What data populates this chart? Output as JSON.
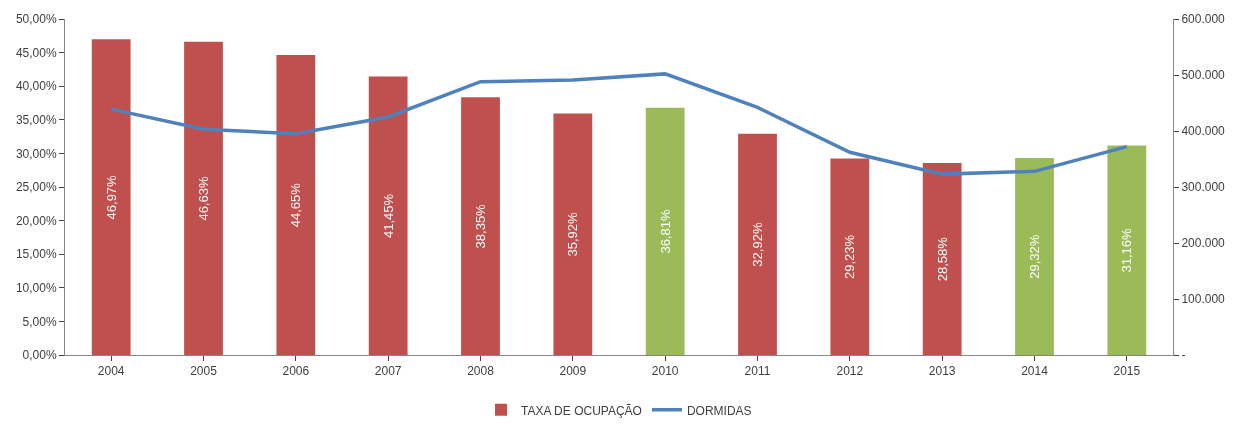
{
  "chart_data": {
    "type": "bar",
    "categories": [
      "2004",
      "2005",
      "2006",
      "2007",
      "2008",
      "2009",
      "2010",
      "2011",
      "2012",
      "2013",
      "2014",
      "2015"
    ],
    "series": [
      {
        "name": "TAXA DE OCUPAÇÃO",
        "values": [
          46.97,
          46.63,
          44.65,
          41.45,
          38.35,
          35.92,
          36.81,
          32.92,
          29.23,
          28.58,
          29.32,
          31.16
        ],
        "colors": [
          "#c0504d",
          "#c0504d",
          "#c0504d",
          "#c0504d",
          "#c0504d",
          "#c0504d",
          "#9bbb59",
          "#c0504d",
          "#c0504d",
          "#c0504d",
          "#9bbb59",
          "#9bbb59"
        ],
        "value_labels": [
          "46,97%",
          "46,63%",
          "44,65%",
          "41,45%",
          "38,35%",
          "35,92%",
          "36,81%",
          "32,92%",
          "29,23%",
          "28,58%",
          "29,32%",
          "31,16%"
        ]
      },
      {
        "name": "DORMIDAS",
        "type": "line",
        "axis": "y2",
        "color": "#4f81bd",
        "values": [
          439000,
          403000,
          395000,
          425000,
          488000,
          491000,
          502000,
          442000,
          362000,
          323000,
          328000,
          372000
        ]
      }
    ],
    "ylim": [
      0,
      50
    ],
    "yticks": [
      {
        "value": 0,
        "label": "0,00%"
      },
      {
        "value": 5,
        "label": "5,00%"
      },
      {
        "value": 10,
        "label": "10,00%"
      },
      {
        "value": 15,
        "label": "15,00%"
      },
      {
        "value": 20,
        "label": "20,00%"
      },
      {
        "value": 25,
        "label": "25,00%"
      },
      {
        "value": 30,
        "label": "30,00%"
      },
      {
        "value": 35,
        "label": "35,00%"
      },
      {
        "value": 40,
        "label": "40,00%"
      },
      {
        "value": 45,
        "label": "45,00%"
      },
      {
        "value": 50,
        "label": "50,00%"
      }
    ],
    "y2lim": [
      0,
      600000
    ],
    "y2ticks": [
      {
        "value": 0,
        "label": "-"
      },
      {
        "value": 100000,
        "label": "100.000"
      },
      {
        "value": 200000,
        "label": "200.000"
      },
      {
        "value": 300000,
        "label": "300.000"
      },
      {
        "value": 400000,
        "label": "400.000"
      },
      {
        "value": 500000,
        "label": "500.000"
      },
      {
        "value": 600000,
        "label": "600.000"
      }
    ],
    "legend": "bottom",
    "marker": "none",
    "line_style": "solid"
  }
}
